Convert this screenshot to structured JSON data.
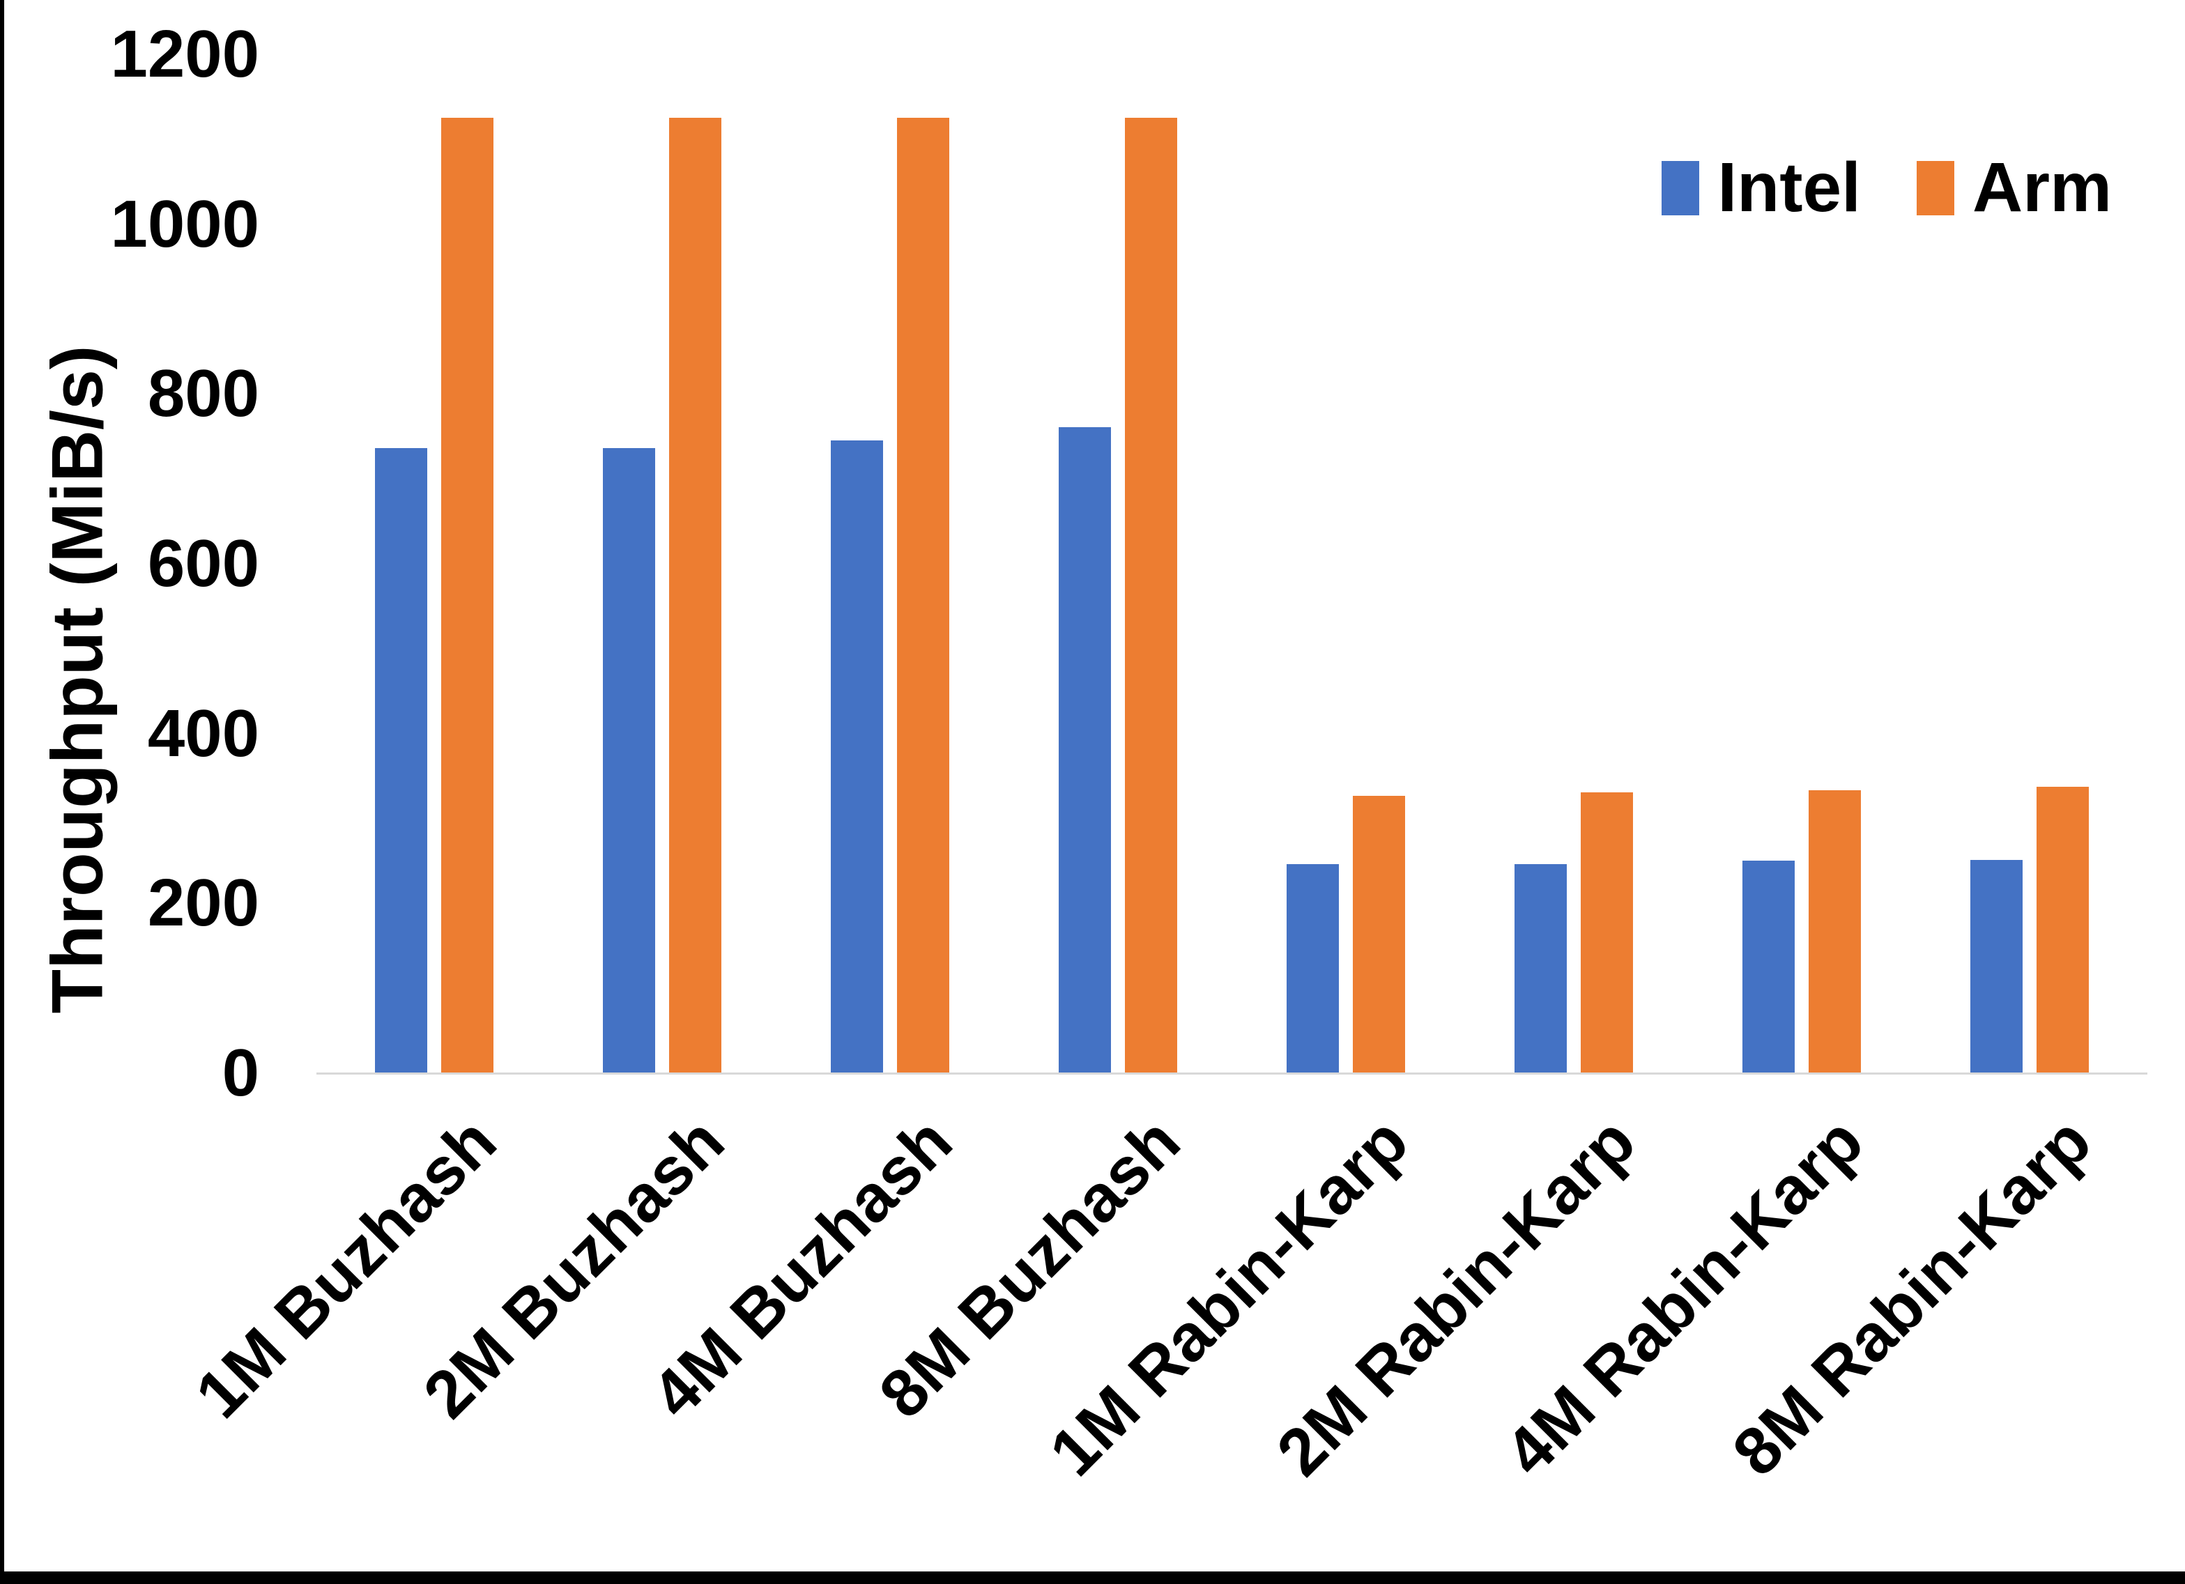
{
  "chart_data": {
    "type": "bar",
    "title": "",
    "xlabel": "",
    "ylabel": "Throughput (MiB/s)",
    "ylim": [
      0,
      1200
    ],
    "yticks": [
      0,
      200,
      400,
      600,
      800,
      1000,
      1200
    ],
    "grid": false,
    "legend_position": "top-right",
    "categories": [
      "1M Buzhash",
      "2M Buzhash",
      "4M Buzhash",
      "8M Buzhash",
      "1M Rabin-Karp",
      "2M Rabin-Karp",
      "4M Rabin-Karp",
      "8M Rabin-Karp"
    ],
    "series": [
      {
        "name": "Intel",
        "color": "#4472C4",
        "values": [
          736,
          736,
          745,
          761,
          246,
          246,
          250,
          251
        ]
      },
      {
        "name": "Arm",
        "color": "#ED7D31",
        "values": [
          1125,
          1125,
          1125,
          1125,
          327,
          331,
          333,
          337
        ]
      }
    ],
    "axis_line_color": "#D9D9D9",
    "text_color": "#000000",
    "frame_color": "#000000"
  }
}
